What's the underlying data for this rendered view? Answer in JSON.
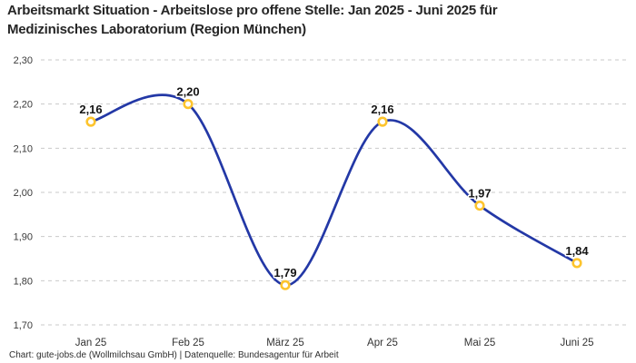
{
  "header": {
    "title_line1": "Arbeitsmarkt Situation - Arbeitslose pro offene Stelle: Jan 2025 - Juni 2025 für",
    "title_line2": "Medizinisches Laboratorium (Region München)"
  },
  "footer": {
    "text": "Chart: gute-jobs.de (Wollmilchsau GmbH) | Datenquelle: Bundesagentur für Arbeit"
  },
  "chart_data": {
    "type": "line",
    "title": "Arbeitsmarkt Situation - Arbeitslose pro offene Stelle: Jan 2025 - Juni 2025 für Medizinisches Laboratorium (Region München)",
    "categories": [
      "Jan 25",
      "Feb 25",
      "März 25",
      "Apr 25",
      "Mai 25",
      "Juni 25"
    ],
    "values": [
      2.16,
      2.2,
      1.79,
      2.16,
      1.97,
      1.84
    ],
    "point_labels": [
      "2,16",
      "2,20",
      "1,79",
      "2,16",
      "1,97",
      "1,84"
    ],
    "ylim": [
      1.7,
      2.3
    ],
    "yticks": [
      {
        "value": 2.3,
        "label": "2,30"
      },
      {
        "value": 2.2,
        "label": "2,20"
      },
      {
        "value": 2.1,
        "label": "2,10"
      },
      {
        "value": 2.0,
        "label": "2,00"
      },
      {
        "value": 1.9,
        "label": "1,90"
      },
      {
        "value": 1.8,
        "label": "1,80"
      },
      {
        "value": 1.7,
        "label": "1,70"
      }
    ],
    "xlabel": "",
    "ylabel": "",
    "grid": "horizontal-dashed",
    "legend": "none",
    "line_interpolation": "smooth",
    "colors": {
      "line": "#2338a6",
      "marker_stroke": "#fdc42d",
      "marker_fill": "#ffffff",
      "grid": "#c9c9c9",
      "title_text": "#262626",
      "axis_text": "#3a3a3a",
      "point_label_text": "#151515",
      "background": "#ffffff"
    }
  }
}
